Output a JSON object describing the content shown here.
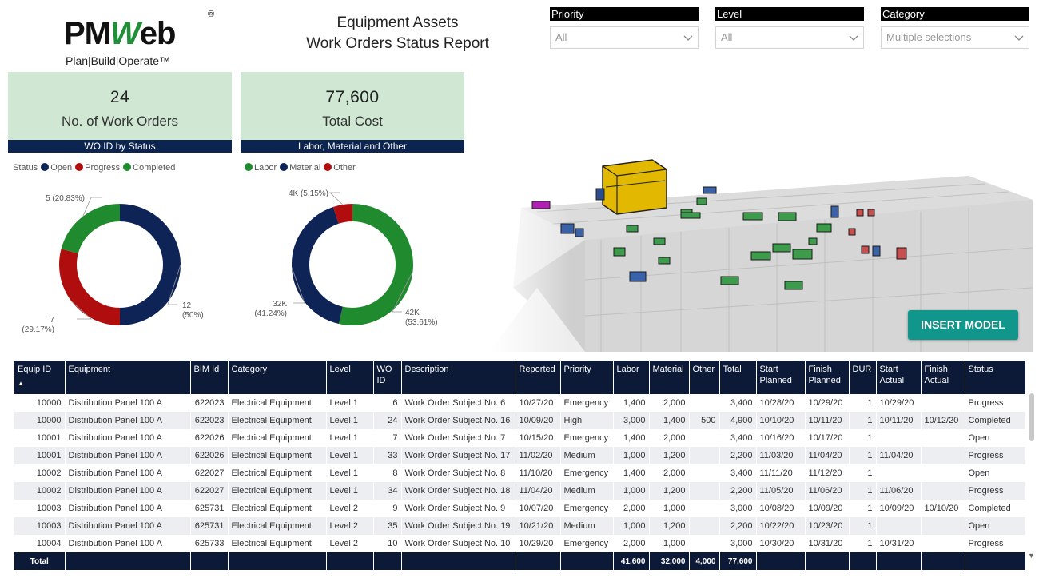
{
  "logo": {
    "main_a": "PM",
    "main_w": "W",
    "main_b": "eb",
    "reg": "®",
    "tagline": "Plan|Build|Operate™"
  },
  "report": {
    "title_line1": "Equipment Assets",
    "title_line2": "Work Orders Status Report"
  },
  "slicers": [
    {
      "label": "Priority",
      "value": "All"
    },
    {
      "label": "Level",
      "value": "All"
    },
    {
      "label": "Category",
      "value": "Multiple selections"
    }
  ],
  "kpis": [
    {
      "value": "24",
      "label": "No. of Work Orders",
      "bar": "WO ID by Status"
    },
    {
      "value": "77,600",
      "label": "Total Cost",
      "bar": "Labor, Material and Other"
    }
  ],
  "chart_data": [
    {
      "type": "pie",
      "title": "WO ID by Status",
      "legend_title": "Status",
      "legend_position": "top-left",
      "categories": [
        "Open",
        "Progress",
        "Completed"
      ],
      "values": [
        12,
        7,
        5
      ],
      "colors": [
        "#0e2456",
        "#b00e0e",
        "#208a2e"
      ],
      "data_labels": [
        "12\n(50%)",
        "7\n(29.17%)",
        "5 (20.83%)"
      ]
    },
    {
      "type": "pie",
      "title": "Labor, Material and Other",
      "legend_title": "",
      "legend_position": "top-left",
      "categories": [
        "Labor",
        "Material",
        "Other"
      ],
      "values": [
        41600,
        32000,
        4000
      ],
      "colors": [
        "#208a2e",
        "#0e2456",
        "#b00e0e"
      ],
      "data_labels": [
        "42K\n(53.61%)",
        "32K\n(41.24%)",
        "4K (5.15%)"
      ]
    }
  ],
  "model": {
    "insert_button": "INSERT MODEL"
  },
  "table": {
    "columns": [
      "Equip ID",
      "Equipment",
      "BIM Id",
      "Category",
      "Level",
      "WO ID",
      "Description",
      "Reported",
      "Priority",
      "Labor",
      "Material",
      "Other",
      "Total",
      "Start Planned",
      "Finish Planned",
      "DUR",
      "Start Actual",
      "Finish Actual",
      "Status"
    ],
    "sort_indicator": "▲",
    "rows": [
      [
        "10000",
        "Distribution Panel 100 A",
        "622023",
        "Electrical Equipment",
        "Level 1",
        "6",
        "Work Order Subject No. 6",
        "10/27/20",
        "Emergency",
        "1,400",
        "2,000",
        "",
        "3,400",
        "10/28/20",
        "10/29/20",
        "1",
        "10/29/20",
        "",
        "Progress"
      ],
      [
        "10000",
        "Distribution Panel 100 A",
        "622023",
        "Electrical Equipment",
        "Level 1",
        "24",
        "Work Order Subject No. 16",
        "10/09/20",
        "High",
        "3,000",
        "1,400",
        "500",
        "4,900",
        "10/10/20",
        "10/11/20",
        "1",
        "10/11/20",
        "10/12/20",
        "Completed"
      ],
      [
        "10001",
        "Distribution Panel 100 A",
        "622026",
        "Electrical Equipment",
        "Level 1",
        "7",
        "Work Order Subject No. 7",
        "10/15/20",
        "Emergency",
        "1,400",
        "2,000",
        "",
        "3,400",
        "10/16/20",
        "10/17/20",
        "1",
        "",
        "",
        "Open"
      ],
      [
        "10001",
        "Distribution Panel 100 A",
        "622026",
        "Electrical Equipment",
        "Level 1",
        "33",
        "Work Order Subject No. 17",
        "11/02/20",
        "Medium",
        "1,000",
        "1,200",
        "",
        "2,200",
        "11/03/20",
        "11/04/20",
        "1",
        "11/04/20",
        "",
        "Progress"
      ],
      [
        "10002",
        "Distribution Panel 100 A",
        "622027",
        "Electrical Equipment",
        "Level 1",
        "8",
        "Work Order Subject No. 8",
        "11/10/20",
        "Emergency",
        "1,400",
        "2,000",
        "",
        "3,400",
        "11/11/20",
        "11/12/20",
        "1",
        "",
        "",
        "Open"
      ],
      [
        "10002",
        "Distribution Panel 100 A",
        "622027",
        "Electrical Equipment",
        "Level 1",
        "34",
        "Work Order Subject No. 18",
        "11/04/20",
        "Medium",
        "1,000",
        "1,200",
        "",
        "2,200",
        "11/05/20",
        "11/06/20",
        "1",
        "11/06/20",
        "",
        "Progress"
      ],
      [
        "10003",
        "Distribution Panel 100 A",
        "625731",
        "Electrical Equipment",
        "Level 2",
        "9",
        "Work Order Subject No. 9",
        "10/07/20",
        "Emergency",
        "2,000",
        "1,000",
        "",
        "3,000",
        "10/08/20",
        "10/09/20",
        "1",
        "10/09/20",
        "10/10/20",
        "Completed"
      ],
      [
        "10003",
        "Distribution Panel 100 A",
        "625731",
        "Electrical Equipment",
        "Level 2",
        "35",
        "Work Order Subject No. 19",
        "10/21/20",
        "Medium",
        "1,000",
        "1,200",
        "",
        "2,200",
        "10/22/20",
        "10/23/20",
        "1",
        "",
        "",
        "Open"
      ],
      [
        "10004",
        "Distribution Panel 100 A",
        "625733",
        "Electrical Equipment",
        "Level 2",
        "10",
        "Work Order Subject No. 10",
        "10/29/20",
        "Emergency",
        "2,000",
        "1,000",
        "",
        "3,000",
        "10/30/20",
        "10/31/20",
        "1",
        "10/31/20",
        "",
        "Progress"
      ]
    ],
    "total_row": [
      "Total",
      "",
      "",
      "",
      "",
      "",
      "",
      "",
      "",
      "41,600",
      "32,000",
      "4,000",
      "77,600",
      "",
      "",
      "",
      "",
      "",
      ""
    ]
  },
  "colors": {
    "kpi_bg": "#cfe7d3",
    "navy": "#0c1a38",
    "teal_button": "#11968b"
  }
}
